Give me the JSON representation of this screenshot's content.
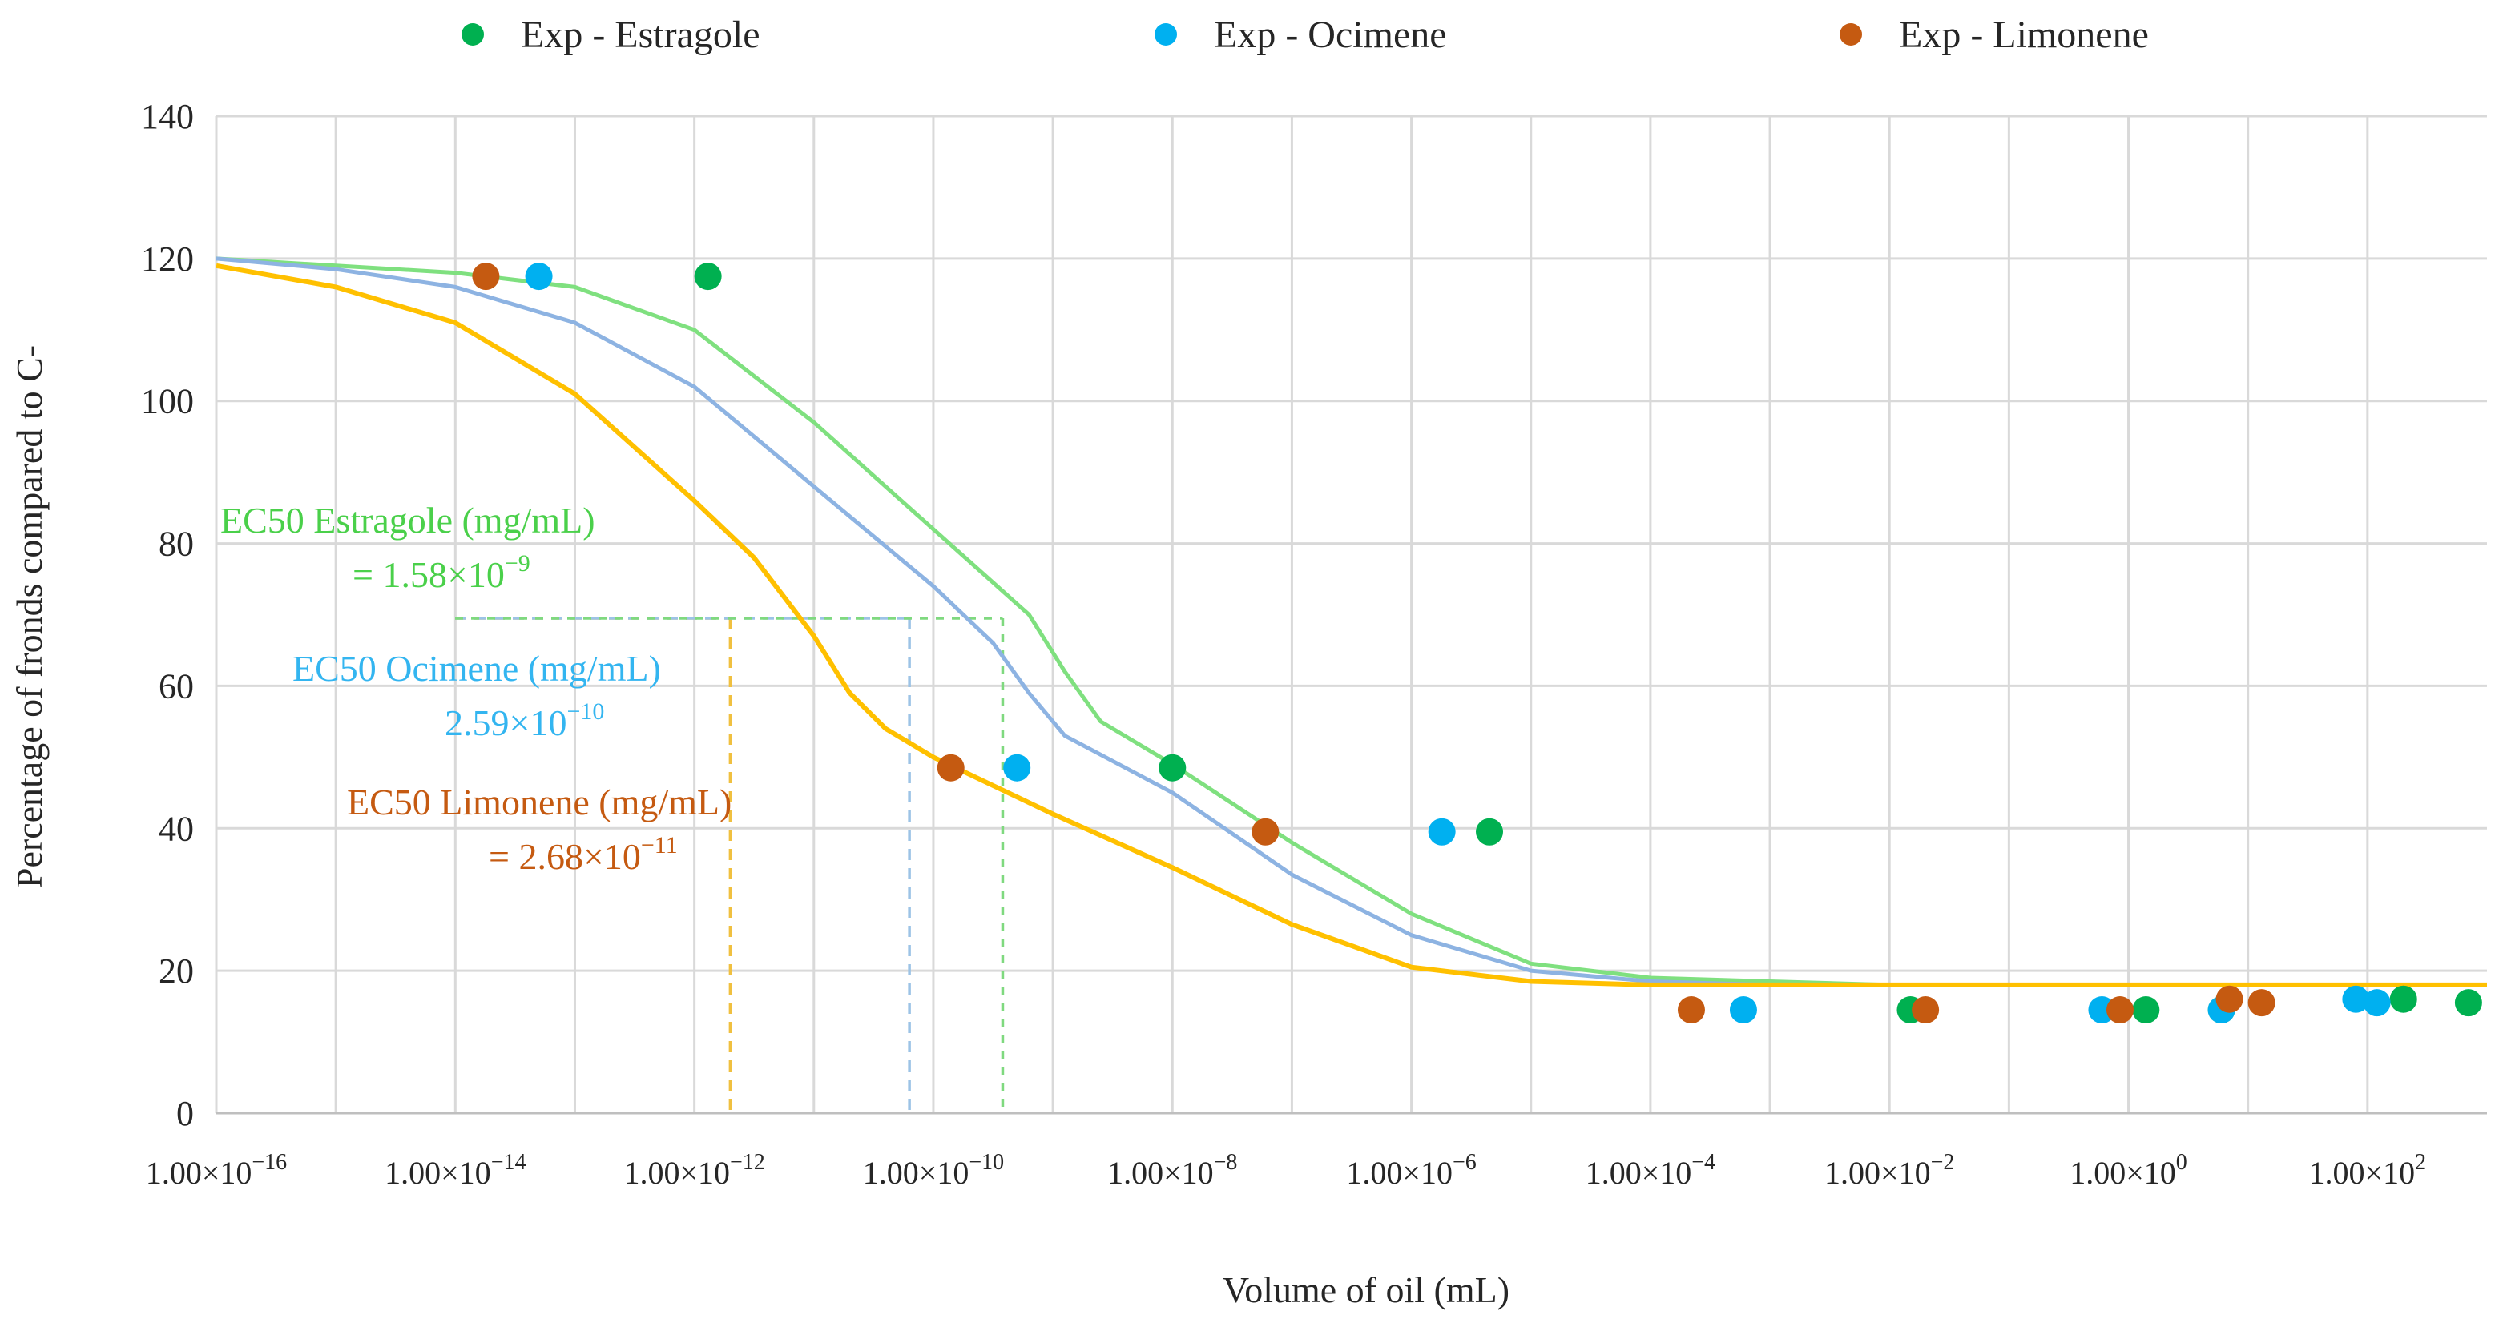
{
  "chart_data": {
    "type": "scatter",
    "xlabel": "Volume of oil (mL)",
    "ylabel": "Percentage of fronds compared to C-",
    "x_scale": "log10",
    "xlim": [
      1e-16,
      1000
    ],
    "ylim": [
      0,
      140
    ],
    "y_ticks": [
      0,
      20,
      40,
      60,
      80,
      100,
      120,
      140
    ],
    "x_ticks": [
      -16,
      -15,
      -14,
      -13,
      -12,
      -11,
      -10,
      -9,
      -8,
      -7,
      -6,
      -5,
      -4,
      -3,
      -2,
      -1,
      0,
      1,
      2
    ],
    "x_tick_labels": [
      {
        "exp": -16,
        "mant": "1.00×10",
        "sup": "−16"
      },
      {
        "exp": -14,
        "mant": "1.00×10",
        "sup": "−14"
      },
      {
        "exp": -12,
        "mant": "1.00×10",
        "sup": "−12"
      },
      {
        "exp": -10,
        "mant": "1.00×10",
        "sup": "−10"
      },
      {
        "exp": -8,
        "mant": "1.00×10",
        "sup": "−8"
      },
      {
        "exp": -6,
        "mant": "1.00×10",
        "sup": "−6"
      },
      {
        "exp": -4,
        "mant": "1.00×10",
        "sup": "−4"
      },
      {
        "exp": -2,
        "mant": "1.00×10",
        "sup": "−2"
      },
      {
        "exp": 0,
        "mant": "1.00×10",
        "sup": "0"
      },
      {
        "exp": 2,
        "mant": "1.00×10",
        "sup": "2"
      }
    ],
    "grid": true,
    "legend_position": "top",
    "series": [
      {
        "name": "Exp - Estragole",
        "color": "#00b050",
        "points": [
          {
            "x": 1.3e-12,
            "y": 117.5
          },
          {
            "x": 1e-08,
            "y": 48.5
          },
          {
            "x": 4.5e-06,
            "y": 39.5
          },
          {
            "x": 0.015,
            "y": 14.5
          },
          {
            "x": 1.4,
            "y": 14.5
          },
          {
            "x": 6.0,
            "y": 14.5
          },
          {
            "x": 200,
            "y": 16.0
          },
          {
            "x": 700,
            "y": 15.5
          }
        ]
      },
      {
        "name": "Exp - Ocimene",
        "color": "#00b0f0",
        "points": [
          {
            "x": 5e-14,
            "y": 117.5
          },
          {
            "x": 5e-10,
            "y": 48.5
          },
          {
            "x": 1.8e-06,
            "y": 39.5
          },
          {
            "x": 0.0006,
            "y": 14.5
          },
          {
            "x": 0.6,
            "y": 14.5
          },
          {
            "x": 6.0,
            "y": 14.5
          },
          {
            "x": 80,
            "y": 16.0
          },
          {
            "x": 120,
            "y": 15.5
          }
        ]
      },
      {
        "name": "Exp - Limonene",
        "color": "#c55a11",
        "points": [
          {
            "x": 1.8e-14,
            "y": 117.5
          },
          {
            "x": 1.4e-10,
            "y": 48.5
          },
          {
            "x": 6e-08,
            "y": 39.5
          },
          {
            "x": 0.00022,
            "y": 14.5
          },
          {
            "x": 0.02,
            "y": 14.5
          },
          {
            "x": 0.85,
            "y": 14.5
          },
          {
            "x": 7.0,
            "y": 16.0
          },
          {
            "x": 13.0,
            "y": 15.5
          }
        ]
      }
    ],
    "fits": [
      {
        "color": "#7fe07f",
        "points": [
          [
            -16,
            120
          ],
          [
            -15,
            119
          ],
          [
            -14,
            118
          ],
          [
            -13,
            116
          ],
          [
            -12,
            110
          ],
          [
            -11,
            97
          ],
          [
            -10,
            82
          ],
          [
            -9.2,
            70
          ],
          [
            -8.9,
            62
          ],
          [
            -8.6,
            55
          ],
          [
            -8,
            49
          ],
          [
            -7,
            38
          ],
          [
            -6,
            28
          ],
          [
            -5,
            21
          ],
          [
            -4,
            19
          ],
          [
            -3,
            18.5
          ],
          [
            -2,
            18
          ],
          [
            -1,
            18
          ],
          [
            0,
            18
          ],
          [
            1,
            18
          ],
          [
            2,
            18
          ],
          [
            3,
            18
          ]
        ]
      },
      {
        "color": "#8db3e2",
        "points": [
          [
            -16,
            120
          ],
          [
            -15,
            118.5
          ],
          [
            -14,
            116
          ],
          [
            -13,
            111
          ],
          [
            -12,
            102
          ],
          [
            -11,
            88
          ],
          [
            -10,
            74
          ],
          [
            -9.5,
            66
          ],
          [
            -9.2,
            59
          ],
          [
            -8.9,
            53
          ],
          [
            -8,
            45
          ],
          [
            -7,
            33.5
          ],
          [
            -6,
            25
          ],
          [
            -5,
            20
          ],
          [
            -4,
            18.5
          ],
          [
            -3,
            18
          ],
          [
            -2,
            18
          ],
          [
            -1,
            18
          ],
          [
            0,
            18
          ],
          [
            1,
            18
          ],
          [
            2,
            18
          ],
          [
            3,
            18
          ]
        ]
      },
      {
        "color": "#ffc000",
        "points": [
          [
            -16,
            119
          ],
          [
            -15,
            116
          ],
          [
            -14,
            111
          ],
          [
            -13,
            101
          ],
          [
            -12,
            86
          ],
          [
            -11.5,
            78
          ],
          [
            -11,
            67
          ],
          [
            -10.7,
            59
          ],
          [
            -10.4,
            54
          ],
          [
            -10,
            50
          ],
          [
            -9,
            42
          ],
          [
            -8,
            34.5
          ],
          [
            -7,
            26.5
          ],
          [
            -6,
            20.5
          ],
          [
            -5,
            18.5
          ],
          [
            -4,
            18
          ],
          [
            -3,
            18
          ],
          [
            -2,
            18
          ],
          [
            -1,
            18
          ],
          [
            0,
            18
          ],
          [
            1,
            18
          ],
          [
            2,
            18
          ],
          [
            3,
            18
          ]
        ]
      }
    ],
    "ec50_markers": [
      {
        "color": "#f0c040",
        "x_exp": -11.7,
        "y": 69.5,
        "dash": "14,10"
      },
      {
        "color": "#9cc3e6",
        "x_exp": -10.2,
        "y": 69.5,
        "dash": "14,10"
      },
      {
        "color": "#7fd97f",
        "x_exp": -9.42,
        "y": 69.5,
        "dash": "10,10"
      }
    ],
    "annotations": [
      {
        "line1": "EC50 Estragole (mg/mL)",
        "line2": "= 1.58×10",
        "sup": "−9",
        "color": "#4ad04a"
      },
      {
        "line1": "EC50 Ocimene (mg/mL)",
        "line2": "2.59×10",
        "sup": "−10",
        "color": "#33b5f0"
      },
      {
        "line1": "EC50 Limonene (mg/mL)",
        "line2": "= 2.68×10",
        "sup": "−11",
        "color": "#c55a11"
      }
    ]
  }
}
